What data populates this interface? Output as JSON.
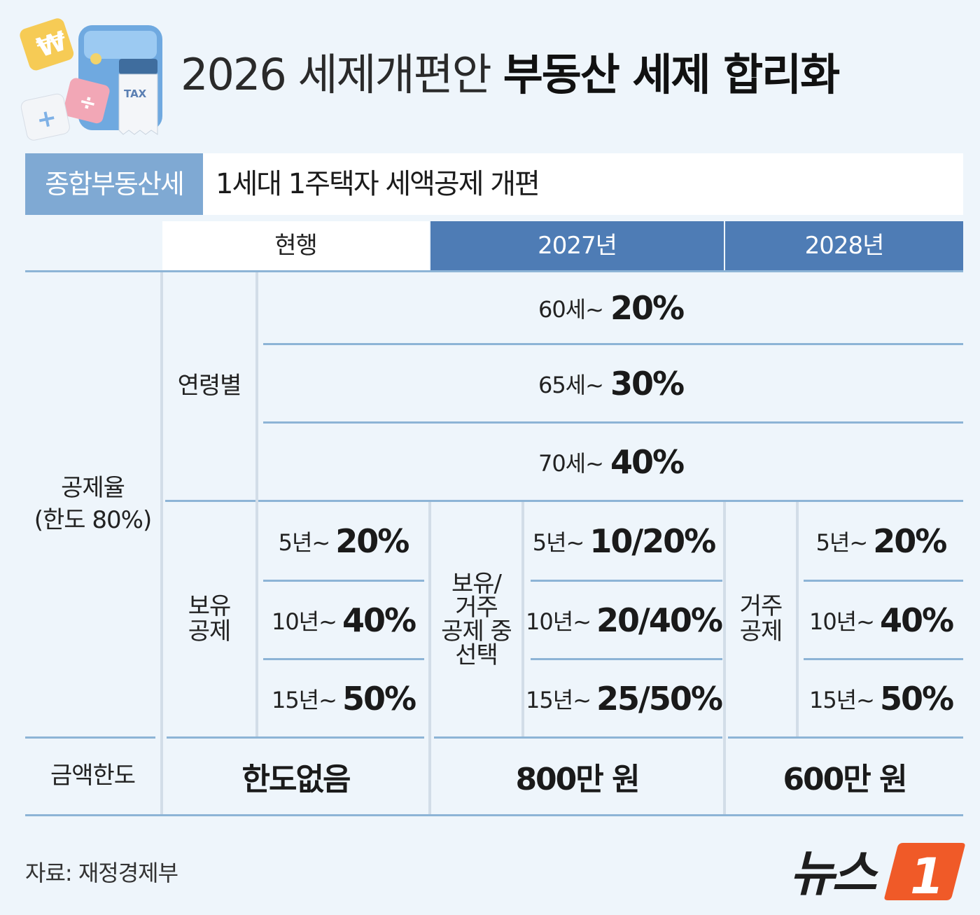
{
  "header": {
    "title_light": "2026 세제개편안",
    "title_bold": "부동산 세제 합리화",
    "illustration_label": "TAX"
  },
  "subheader": {
    "tag": "종합부동산세",
    "subtitle": "1세대 1주택자 세액공제 개편"
  },
  "columns": {
    "current": "현행",
    "y2027": "2027년",
    "y2028": "2028년"
  },
  "rows": {
    "deduction_label_line1": "공제율",
    "deduction_label_line2": "(한도 80%)",
    "age_label": "연령별",
    "age": [
      {
        "from": "60세~",
        "rate": "20%"
      },
      {
        "from": "65세~",
        "rate": "30%"
      },
      {
        "from": "70세~",
        "rate": "40%"
      }
    ],
    "holding_label_line1": "보유",
    "holding_label_line2": "공제",
    "current_holding": [
      {
        "from": "5년~",
        "rate": "20%"
      },
      {
        "from": "10년~",
        "rate": "40%"
      },
      {
        "from": "15년~",
        "rate": "50%"
      }
    ],
    "choice_label_lines": [
      "보유/",
      "거주",
      "공제 중",
      "선택"
    ],
    "y2027_holding": [
      {
        "from": "5년~",
        "rate": "10/20%"
      },
      {
        "from": "10년~",
        "rate": "20/40%"
      },
      {
        "from": "15년~",
        "rate": "25/50%"
      }
    ],
    "residence_label_line1": "거주",
    "residence_label_line2": "공제",
    "y2028_holding": [
      {
        "from": "5년~",
        "rate": "20%"
      },
      {
        "from": "10년~",
        "rate": "40%"
      },
      {
        "from": "15년~",
        "rate": "50%"
      }
    ],
    "limit_label": "금액한도",
    "limit_current": "한도없음",
    "limit_2027": "800만 원",
    "limit_2028": "600만 원"
  },
  "footer": {
    "source": "자료: 재정경제부",
    "logo_text": "뉴스",
    "logo_mark": "1"
  },
  "colors": {
    "background": "#eef5fb",
    "tag_bg": "#7fa9d3",
    "header_blue": "#4e7cb5",
    "line_blue": "#8db4d6",
    "logo_orange": "#f05a28"
  }
}
